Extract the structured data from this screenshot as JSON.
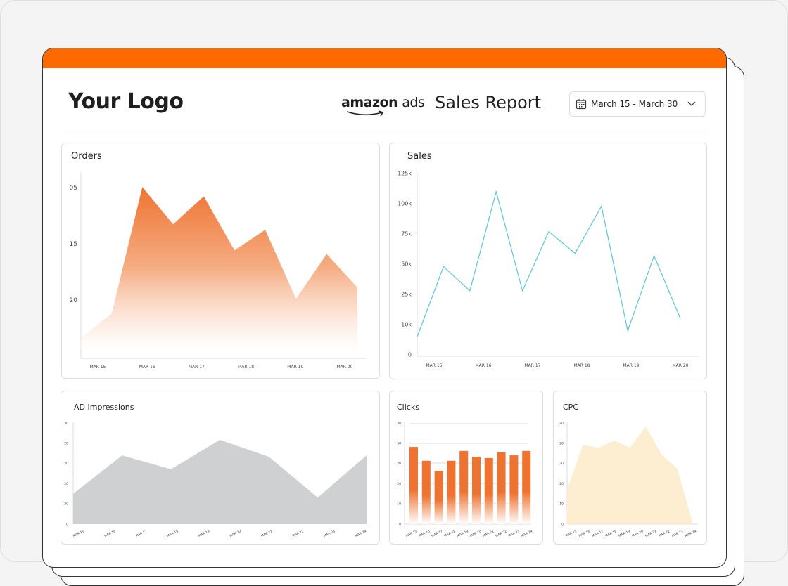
{
  "header": {
    "logo": "Your Logo",
    "brand_main": "amazon",
    "brand_sub": "ads",
    "title": "Sales Report",
    "date_range": "March 15 - March 30"
  },
  "colors": {
    "accent": "#ff6a00",
    "orders": "#f07a3c",
    "sales": "#5bc8d6",
    "impressions": "#cfd0d2",
    "clicks": "#ee7330",
    "cpc": "#fdeed2"
  },
  "chart_data": [
    {
      "id": "orders",
      "type": "area",
      "title": "Orders",
      "yticks": [
        "05",
        "15",
        "20"
      ],
      "xticks": [
        "MAR 15",
        "MAR 16",
        "MAR 17",
        "MAR 18",
        "MAR 19",
        "MAR 20"
      ],
      "ylim": [
        0,
        100
      ],
      "values": [
        11,
        24,
        92,
        72,
        87,
        58,
        69,
        32,
        56,
        38
      ]
    },
    {
      "id": "sales",
      "type": "line",
      "title": "Sales",
      "yticks": [
        "0",
        "10k",
        "25k",
        "50k",
        "75k",
        "100k",
        "125k"
      ],
      "xticks": [
        "MAR 15",
        "MAR 16",
        "MAR 17",
        "MAR 18",
        "MAR 19",
        "MAR 20"
      ],
      "values": [
        6,
        48,
        28,
        110,
        28,
        77,
        59,
        98,
        8,
        57,
        13
      ]
    },
    {
      "id": "impressions",
      "type": "area",
      "title": "AD Impressions",
      "yticks": [
        "0",
        "20",
        "20",
        "20",
        "20",
        "30"
      ],
      "xticks": [
        "MAR 15",
        "MAR 16",
        "MAR 17",
        "MAR 18",
        "MAR 19",
        "MAR 20",
        "MAR 21",
        "MAR 22",
        "MAR 23",
        "MAR 24"
      ],
      "ylim": [
        0,
        30
      ],
      "values": [
        9,
        20.4,
        16.3,
        25,
        20,
        7.9,
        20.4
      ]
    },
    {
      "id": "clicks",
      "type": "bar",
      "title": "Clicks",
      "yticks": [
        "0",
        "10",
        "20",
        "20",
        "30",
        "30"
      ],
      "xticks": [
        "MAR 15",
        "MAR 16",
        "MAR 17",
        "MAR 18",
        "MAR 19",
        "MAR 20",
        "MAR 21",
        "MAR 22",
        "MAR 23",
        "MAR 24"
      ],
      "ylim": [
        0,
        30
      ],
      "values": [
        22.9,
        18.8,
        15.8,
        18.8,
        21.7,
        20,
        19.6,
        21.3,
        20.4,
        21.7
      ]
    },
    {
      "id": "cpc",
      "type": "area",
      "title": "CPC",
      "yticks": [
        "0",
        "10",
        "20",
        "20",
        "20",
        "20"
      ],
      "xticks": [
        "MAR 15",
        "MAR 16",
        "MAR 17",
        "MAR 18",
        "MAR 19",
        "MAR 20",
        "MAR 21",
        "MAR 22",
        "MAR 23",
        "MAR 24"
      ],
      "ylim": [
        0,
        30
      ],
      "values": [
        10.2,
        23.5,
        22.7,
        24.8,
        22.7,
        29,
        20.6,
        16.5,
        0
      ]
    }
  ]
}
